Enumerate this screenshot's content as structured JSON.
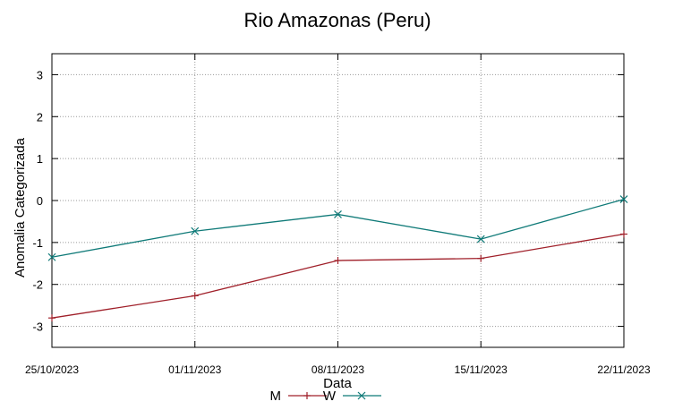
{
  "chart_data": {
    "type": "line",
    "title": "Rio Amazonas (Peru)",
    "xlabel": "Data",
    "ylabel": "Anomalia Categorizada",
    "categories": [
      "25/10/2023",
      "01/11/2023",
      "08/11/2023",
      "15/11/2023",
      "22/11/2023"
    ],
    "ylim": [
      -3.5,
      3.5
    ],
    "yticks": [
      3,
      2,
      1,
      0,
      -1,
      -2,
      -3
    ],
    "grid": true,
    "legend_position": "bottom-center",
    "series": [
      {
        "name": "M",
        "color": "#a0202a",
        "marker": "plus",
        "values": [
          -2.8,
          -2.27,
          -1.43,
          -1.38,
          -0.8
        ]
      },
      {
        "name": "W",
        "color": "#0f7a78",
        "marker": "cross",
        "values": [
          -1.35,
          -0.73,
          -0.33,
          -0.92,
          0.03
        ]
      }
    ]
  }
}
